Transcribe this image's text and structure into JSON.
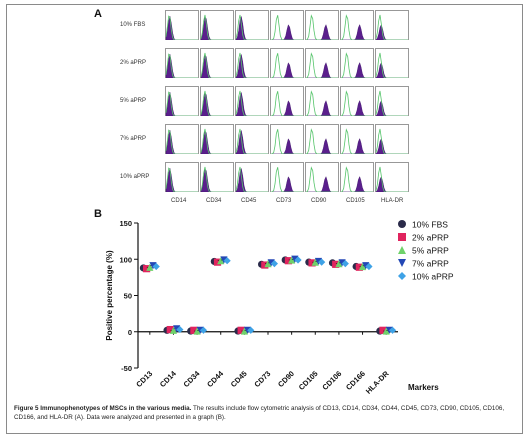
{
  "panel_a": {
    "letter": "A",
    "conditions": [
      "10% FBS",
      "2% aPRP",
      "5% aPRP",
      "7% aPRP",
      "10% aPRP"
    ],
    "markers": [
      "CD14",
      "CD34",
      "CD45",
      "CD73",
      "CD90",
      "CD105",
      "HLA-DR"
    ]
  },
  "panel_b": {
    "letter": "B"
  },
  "chart_data": {
    "type": "scatter",
    "ylabel": "Positive percentage (%)",
    "xlabel": "Markers",
    "ylim": [
      -50,
      150
    ],
    "yticks": [
      -50,
      0,
      50,
      100,
      150
    ],
    "categories": [
      "CD13",
      "CD14",
      "CD34",
      "CD44",
      "CD45",
      "CD73",
      "CD90",
      "CD105",
      "CD106",
      "CD166",
      "HLA-DR"
    ],
    "legend_position": "right",
    "series": [
      {
        "name": "10% FBS",
        "color": "#2b2b4a",
        "marker": "circle",
        "values": [
          88,
          2,
          1,
          97,
          1,
          93,
          99,
          96,
          95,
          90,
          1
        ]
      },
      {
        "name": "2% aPRP",
        "color": "#e0245e",
        "marker": "square",
        "values": [
          87,
          3,
          2,
          96,
          2,
          92,
          98,
          95,
          93,
          89,
          2
        ]
      },
      {
        "name": "5% aPRP",
        "color": "#6fd26a",
        "marker": "triangle-up",
        "values": [
          89,
          2,
          1,
          98,
          1,
          94,
          99,
          96,
          94,
          90,
          1
        ]
      },
      {
        "name": "7% aPRP",
        "color": "#2347b5",
        "marker": "triangle-down",
        "values": [
          91,
          4,
          2,
          99,
          2,
          95,
          100,
          97,
          95,
          91,
          2
        ]
      },
      {
        "name": "10% aPRP",
        "color": "#3ea2e6",
        "marker": "diamond",
        "values": [
          90,
          3,
          2,
          98,
          2,
          94,
          99,
          96,
          94,
          90,
          2
        ]
      }
    ]
  },
  "caption": {
    "lead": "Figure 5 Immunophenotypes of MSCs in the various media.",
    "body": " The results include flow cytometric analysis of CD13, CD14, CD34, CD44, CD45, CD73, CD90, CD105, CD106, CD166, and HLA-DR (A). Data were analyzed and presented in a graph (B)."
  },
  "colors": {
    "histogram_fill": "#5a1f8c",
    "histogram_control": "#55c46a"
  }
}
